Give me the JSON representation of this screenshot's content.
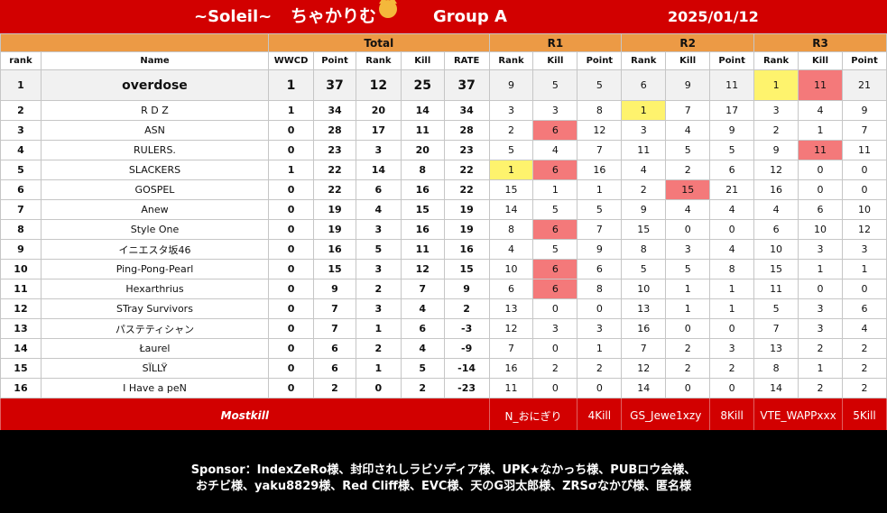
{
  "header": {
    "title_left": "~Soleil~",
    "title_mid": "ちゃかりむ",
    "group": "Group A",
    "date": "2025/01/12",
    "emoji": "cat-face-icon"
  },
  "sections": {
    "total": "Total",
    "r1": "R1",
    "r2": "R2",
    "r3": "R3"
  },
  "columns": {
    "rank": "rank",
    "name": "Name",
    "wwcd": "WWCD",
    "point": "Point",
    "rank2": "Rank",
    "kill": "Kill",
    "rate": "RATE"
  },
  "rows": [
    {
      "rank": "1",
      "name": "overdose",
      "wwcd": "1",
      "point": "37",
      "trank": "12",
      "kill": "25",
      "rate": "37",
      "r1": [
        "9",
        "5",
        "5"
      ],
      "r2": [
        "6",
        "9",
        "11"
      ],
      "r3": [
        "1",
        "11",
        "21"
      ]
    },
    {
      "rank": "2",
      "name": "R D Z",
      "wwcd": "1",
      "point": "34",
      "trank": "20",
      "kill": "14",
      "rate": "34",
      "r1": [
        "3",
        "3",
        "8"
      ],
      "r2": [
        "1",
        "7",
        "17"
      ],
      "r3": [
        "3",
        "4",
        "9"
      ]
    },
    {
      "rank": "3",
      "name": "ASN",
      "wwcd": "0",
      "point": "28",
      "trank": "17",
      "kill": "11",
      "rate": "28",
      "r1": [
        "2",
        "6",
        "12"
      ],
      "r2": [
        "3",
        "4",
        "9"
      ],
      "r3": [
        "2",
        "1",
        "7"
      ]
    },
    {
      "rank": "4",
      "name": "RULERS.",
      "wwcd": "0",
      "point": "23",
      "trank": "3",
      "kill": "20",
      "rate": "23",
      "r1": [
        "5",
        "4",
        "7"
      ],
      "r2": [
        "11",
        "5",
        "5"
      ],
      "r3": [
        "9",
        "11",
        "11"
      ]
    },
    {
      "rank": "5",
      "name": "SLACKERS",
      "wwcd": "1",
      "point": "22",
      "trank": "14",
      "kill": "8",
      "rate": "22",
      "r1": [
        "1",
        "6",
        "16"
      ],
      "r2": [
        "4",
        "2",
        "6"
      ],
      "r3": [
        "12",
        "0",
        "0"
      ]
    },
    {
      "rank": "6",
      "name": "GOSPEL",
      "wwcd": "0",
      "point": "22",
      "trank": "6",
      "kill": "16",
      "rate": "22",
      "r1": [
        "15",
        "1",
        "1"
      ],
      "r2": [
        "2",
        "15",
        "21"
      ],
      "r3": [
        "16",
        "0",
        "0"
      ]
    },
    {
      "rank": "7",
      "name": "Anew",
      "wwcd": "0",
      "point": "19",
      "trank": "4",
      "kill": "15",
      "rate": "19",
      "r1": [
        "14",
        "5",
        "5"
      ],
      "r2": [
        "9",
        "4",
        "4"
      ],
      "r3": [
        "4",
        "6",
        "10"
      ]
    },
    {
      "rank": "8",
      "name": "Style One",
      "wwcd": "0",
      "point": "19",
      "trank": "3",
      "kill": "16",
      "rate": "19",
      "r1": [
        "8",
        "6",
        "7"
      ],
      "r2": [
        "15",
        "0",
        "0"
      ],
      "r3": [
        "6",
        "10",
        "12"
      ]
    },
    {
      "rank": "9",
      "name": "イニエスタ坂46",
      "wwcd": "0",
      "point": "16",
      "trank": "5",
      "kill": "11",
      "rate": "16",
      "r1": [
        "4",
        "5",
        "9"
      ],
      "r2": [
        "8",
        "3",
        "4"
      ],
      "r3": [
        "10",
        "3",
        "3"
      ]
    },
    {
      "rank": "10",
      "name": "Ping-Pong-Pearl",
      "wwcd": "0",
      "point": "15",
      "trank": "3",
      "kill": "12",
      "rate": "15",
      "r1": [
        "10",
        "6",
        "6"
      ],
      "r2": [
        "5",
        "5",
        "8"
      ],
      "r3": [
        "15",
        "1",
        "1"
      ]
    },
    {
      "rank": "11",
      "name": "Hexarthrius",
      "wwcd": "0",
      "point": "9",
      "trank": "2",
      "kill": "7",
      "rate": "9",
      "r1": [
        "6",
        "6",
        "8"
      ],
      "r2": [
        "10",
        "1",
        "1"
      ],
      "r3": [
        "11",
        "0",
        "0"
      ]
    },
    {
      "rank": "12",
      "name": "STray Survivors",
      "wwcd": "0",
      "point": "7",
      "trank": "3",
      "kill": "4",
      "rate": "2",
      "r1": [
        "13",
        "0",
        "0"
      ],
      "r2": [
        "13",
        "1",
        "1"
      ],
      "r3": [
        "5",
        "3",
        "6"
      ]
    },
    {
      "rank": "13",
      "name": "パステティシャン",
      "wwcd": "0",
      "point": "7",
      "trank": "1",
      "kill": "6",
      "rate": "-3",
      "r1": [
        "12",
        "3",
        "3"
      ],
      "r2": [
        "16",
        "0",
        "0"
      ],
      "r3": [
        "7",
        "3",
        "4"
      ]
    },
    {
      "rank": "14",
      "name": "Łaurel",
      "wwcd": "0",
      "point": "6",
      "trank": "2",
      "kill": "4",
      "rate": "-9",
      "r1": [
        "7",
        "0",
        "1"
      ],
      "r2": [
        "7",
        "2",
        "3"
      ],
      "r3": [
        "13",
        "2",
        "2"
      ]
    },
    {
      "rank": "15",
      "name": "SÏLLŸ",
      "wwcd": "0",
      "point": "6",
      "trank": "1",
      "kill": "5",
      "rate": "-14",
      "r1": [
        "16",
        "2",
        "2"
      ],
      "r2": [
        "12",
        "2",
        "2"
      ],
      "r3": [
        "8",
        "1",
        "2"
      ]
    },
    {
      "rank": "16",
      "name": "I Have a peN",
      "wwcd": "0",
      "point": "2",
      "trank": "0",
      "kill": "2",
      "rate": "-23",
      "r1": [
        "11",
        "0",
        "0"
      ],
      "r2": [
        "14",
        "0",
        "0"
      ],
      "r3": [
        "14",
        "2",
        "2"
      ]
    }
  ],
  "highlights": {
    "yellow": [
      "0-r3-0",
      "1-r2-0",
      "4-r1-0"
    ],
    "red": [
      "0-r3-1",
      "2-r1-1",
      "3-r3-1",
      "4-r1-1",
      "5-r2-1",
      "7-r1-1",
      "9-r1-1",
      "10-r1-1"
    ],
    "yellow_color": "#fef36d",
    "red_color": "#f4797a"
  },
  "mostkill": {
    "label": "Mostkill",
    "r1_name": "N_おにぎり",
    "r1_kill": "4Kill",
    "r2_name": "GS_Jewe1xzy",
    "r2_kill": "8Kill",
    "r3_name": "VTE_WAPPxxx",
    "r3_kill": "5Kill"
  },
  "sponsor": {
    "line1": "Sponsor：IndexZeRo様、封印されしラビソディア様、UPK★なかっち様、PUBロウ会様、",
    "line2": "おチビ様、yaku8829様、Red Cliff様、EVC様、天のG羽太郎様、ZRSσなかぴ様、匿名様"
  },
  "colors": {
    "brand_red": "#d20000",
    "section_orange": "#ec9a45"
  }
}
